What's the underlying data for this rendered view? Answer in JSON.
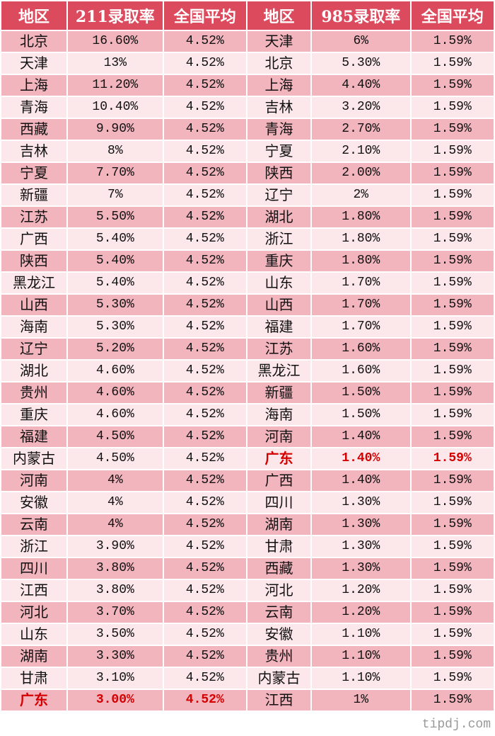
{
  "headers": [
    "地区",
    "211录取率",
    "全国平均",
    "地区",
    "985录取率",
    "全国平均"
  ],
  "highlight_region": "广东",
  "colors": {
    "header": "#dc4a5e",
    "row_dark": "#f2b4bd",
    "row_light": "#fce7ea",
    "highlight_text": "#d40000"
  },
  "rows": [
    [
      "北京",
      "16.60%",
      "4.52%",
      "天津",
      "6%",
      "1.59%"
    ],
    [
      "天津",
      "13%",
      "4.52%",
      "北京",
      "5.30%",
      "1.59%"
    ],
    [
      "上海",
      "11.20%",
      "4.52%",
      "上海",
      "4.40%",
      "1.59%"
    ],
    [
      "青海",
      "10.40%",
      "4.52%",
      "吉林",
      "3.20%",
      "1.59%"
    ],
    [
      "西藏",
      "9.90%",
      "4.52%",
      "青海",
      "2.70%",
      "1.59%"
    ],
    [
      "吉林",
      "8%",
      "4.52%",
      "宁夏",
      "2.10%",
      "1.59%"
    ],
    [
      "宁夏",
      "7.70%",
      "4.52%",
      "陕西",
      "2.00%",
      "1.59%"
    ],
    [
      "新疆",
      "7%",
      "4.52%",
      "辽宁",
      "2%",
      "1.59%"
    ],
    [
      "江苏",
      "5.50%",
      "4.52%",
      "湖北",
      "1.80%",
      "1.59%"
    ],
    [
      "广西",
      "5.40%",
      "4.52%",
      "浙江",
      "1.80%",
      "1.59%"
    ],
    [
      "陕西",
      "5.40%",
      "4.52%",
      "重庆",
      "1.80%",
      "1.59%"
    ],
    [
      "黑龙江",
      "5.40%",
      "4.52%",
      "山东",
      "1.70%",
      "1.59%"
    ],
    [
      "山西",
      "5.30%",
      "4.52%",
      "山西",
      "1.70%",
      "1.59%"
    ],
    [
      "海南",
      "5.30%",
      "4.52%",
      "福建",
      "1.70%",
      "1.59%"
    ],
    [
      "辽宁",
      "5.20%",
      "4.52%",
      "江苏",
      "1.60%",
      "1.59%"
    ],
    [
      "湖北",
      "4.60%",
      "4.52%",
      "黑龙江",
      "1.60%",
      "1.59%"
    ],
    [
      "贵州",
      "4.60%",
      "4.52%",
      "新疆",
      "1.50%",
      "1.59%"
    ],
    [
      "重庆",
      "4.60%",
      "4.52%",
      "海南",
      "1.50%",
      "1.59%"
    ],
    [
      "福建",
      "4.50%",
      "4.52%",
      "河南",
      "1.40%",
      "1.59%"
    ],
    [
      "内蒙古",
      "4.50%",
      "4.52%",
      "广东",
      "1.40%",
      "1.59%"
    ],
    [
      "河南",
      "4%",
      "4.52%",
      "广西",
      "1.40%",
      "1.59%"
    ],
    [
      "安徽",
      "4%",
      "4.52%",
      "四川",
      "1.30%",
      "1.59%"
    ],
    [
      "云南",
      "4%",
      "4.52%",
      "湖南",
      "1.30%",
      "1.59%"
    ],
    [
      "浙江",
      "3.90%",
      "4.52%",
      "甘肃",
      "1.30%",
      "1.59%"
    ],
    [
      "四川",
      "3.80%",
      "4.52%",
      "西藏",
      "1.30%",
      "1.59%"
    ],
    [
      "江西",
      "3.80%",
      "4.52%",
      "河北",
      "1.20%",
      "1.59%"
    ],
    [
      "河北",
      "3.70%",
      "4.52%",
      "云南",
      "1.20%",
      "1.59%"
    ],
    [
      "山东",
      "3.50%",
      "4.52%",
      "安徽",
      "1.10%",
      "1.59%"
    ],
    [
      "湖南",
      "3.30%",
      "4.52%",
      "贵州",
      "1.10%",
      "1.59%"
    ],
    [
      "甘肃",
      "3.10%",
      "4.52%",
      "内蒙古",
      "1.10%",
      "1.59%"
    ],
    [
      "广东",
      "3.00%",
      "4.52%",
      "江西",
      "1%",
      "1.59%"
    ]
  ],
  "watermark": "tipdj.com"
}
